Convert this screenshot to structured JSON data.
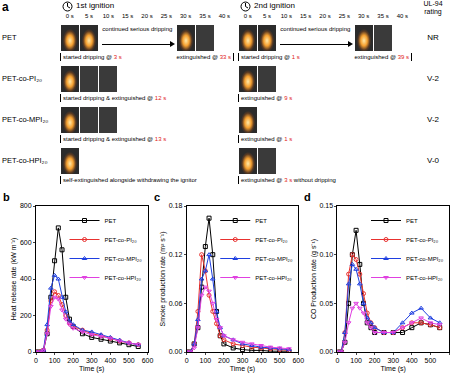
{
  "panel_a": {
    "letter": "a",
    "first_ignition": "1st ignition",
    "second_ignition": "2nd ignition",
    "rating_head": "UL-94 rating",
    "times": [
      "0 s",
      "5 s",
      "10 s",
      "15 s",
      "20 s",
      "25 s",
      "30 s",
      "35 s",
      "40 s"
    ],
    "rows": [
      {
        "name": "PET",
        "first": [
          "started dripping @ 3 s",
          "continued serious dripping",
          "extinguished @ 33 s"
        ],
        "second": [
          "started dripping @ 1 s",
          "continued serious dripping",
          "extinguished @ 39 s"
        ],
        "rating": "NR"
      },
      {
        "name": "PET-co-PI₂₀",
        "first": [
          "started dripping & extinguished @ 12 s"
        ],
        "second": [
          "extinguished @ 9 s"
        ],
        "rating": "V-2"
      },
      {
        "name": "PET-co-MPI₂₀",
        "first": [
          "started dripping & extinguished @ 13 s"
        ],
        "second": [
          "extinguished @ 1 s"
        ],
        "rating": "V-2"
      },
      {
        "name": "PET-co-HPI₂₀",
        "first": [
          "self-extinguished alongside withdrawing the ignitor"
        ],
        "second": [
          "extinguished @ 3 s without dripping"
        ],
        "rating": "V-0"
      }
    ]
  },
  "chart_data": [
    {
      "type": "line",
      "panel": "b",
      "x_label": "Time (s)",
      "y_label": "Heat release rate (kW m⁻²)",
      "xlim": [
        0,
        600
      ],
      "xticks": [
        0,
        100,
        200,
        300,
        400,
        500,
        600
      ],
      "ylim": [
        0,
        800
      ],
      "yticks": [
        0,
        200,
        400,
        600,
        800
      ],
      "legend": "upper right",
      "x": [
        0,
        20,
        40,
        60,
        80,
        100,
        120,
        140,
        160,
        180,
        200,
        250,
        300,
        350,
        400,
        450,
        500,
        550
      ],
      "series": [
        {
          "name": "PET",
          "color": "#000000",
          "marker": "square",
          "values": [
            0,
            0,
            5,
            100,
            300,
            500,
            680,
            560,
            300,
            180,
            140,
            100,
            80,
            70,
            60,
            50,
            40,
            30
          ]
        },
        {
          "name": "PET-co-PI₂₀",
          "color": "#e8312f",
          "marker": "circle",
          "values": [
            0,
            0,
            10,
            120,
            280,
            330,
            310,
            260,
            200,
            160,
            140,
            120,
            100,
            90,
            75,
            60,
            50,
            40
          ]
        },
        {
          "name": "PET-co-MPI₂₀",
          "color": "#1f3fe0",
          "marker": "triangle-up",
          "values": [
            0,
            0,
            10,
            150,
            350,
            420,
            400,
            300,
            220,
            170,
            150,
            120,
            110,
            95,
            80,
            65,
            50,
            40
          ]
        },
        {
          "name": "PET-co-HPI₂₀",
          "color": "#e040e0",
          "marker": "triangle-down",
          "values": [
            0,
            0,
            10,
            100,
            250,
            300,
            290,
            230,
            180,
            150,
            130,
            110,
            95,
            85,
            75,
            60,
            50,
            40
          ]
        }
      ]
    },
    {
      "type": "line",
      "panel": "c",
      "x_label": "Time (s)",
      "y_label": "Smoke production rate (m² s⁻¹)",
      "xlim": [
        0,
        600
      ],
      "xticks": [
        0,
        100,
        200,
        300,
        400,
        500,
        600
      ],
      "ylim": [
        0,
        0.18
      ],
      "yticks": [
        {
          "value": 0,
          "label": "0.00"
        },
        {
          "value": 0.06,
          "label": "0.06"
        },
        {
          "value": 0.12,
          "label": "0.12"
        },
        {
          "value": 0.18,
          "label": "0.18"
        }
      ],
      "legend": "upper right",
      "x": [
        0,
        20,
        40,
        60,
        80,
        100,
        120,
        140,
        160,
        180,
        200,
        250,
        300,
        350,
        400,
        450,
        500,
        550
      ],
      "series": [
        {
          "name": "PET",
          "color": "#000000",
          "marker": "square",
          "values": [
            0,
            0,
            0.01,
            0.03,
            0.08,
            0.13,
            0.165,
            0.12,
            0.05,
            0.02,
            0.01,
            0.005,
            0.003,
            0.002,
            0.002,
            0.001,
            0.001,
            0.001
          ]
        },
        {
          "name": "PET-co-PI₂₀",
          "color": "#e8312f",
          "marker": "circle",
          "values": [
            0,
            0,
            0.01,
            0.05,
            0.12,
            0.1,
            0.07,
            0.05,
            0.035,
            0.02,
            0.015,
            0.01,
            0.008,
            0.006,
            0.005,
            0.004,
            0.003,
            0.002
          ]
        },
        {
          "name": "PET-co-MPI₂₀",
          "color": "#1f3fe0",
          "marker": "triangle-up",
          "values": [
            0,
            0,
            0.01,
            0.04,
            0.09,
            0.1,
            0.12,
            0.09,
            0.05,
            0.03,
            0.02,
            0.015,
            0.01,
            0.008,
            0.006,
            0.005,
            0.004,
            0.003
          ]
        },
        {
          "name": "PET-co-HPI₂₀",
          "color": "#e040e0",
          "marker": "triangle-down",
          "values": [
            0,
            0,
            0.005,
            0.03,
            0.07,
            0.08,
            0.075,
            0.06,
            0.04,
            0.03,
            0.02,
            0.015,
            0.012,
            0.01,
            0.008,
            0.006,
            0.005,
            0.004
          ]
        }
      ]
    },
    {
      "type": "line",
      "panel": "d",
      "x_label": "Time (s)",
      "y_label": "CO Production rate (g s⁻¹)",
      "xlim": [
        0,
        600
      ],
      "xticks": [
        0,
        100,
        200,
        300,
        400,
        500,
        600
      ],
      "ylim": [
        0,
        0.15
      ],
      "yticks": [
        {
          "value": 0,
          "label": "0.00"
        },
        {
          "value": 0.05,
          "label": "0.05"
        },
        {
          "value": 0.1,
          "label": "0.10"
        },
        {
          "value": 0.15,
          "label": "0.15"
        }
      ],
      "legend": "upper right",
      "x": [
        0,
        20,
        40,
        60,
        80,
        100,
        120,
        140,
        160,
        180,
        200,
        250,
        300,
        350,
        400,
        450,
        500,
        550
      ],
      "series": [
        {
          "name": "PET",
          "color": "#000000",
          "marker": "square",
          "values": [
            0,
            0,
            0.01,
            0.05,
            0.1,
            0.125,
            0.09,
            0.05,
            0.03,
            0.025,
            0.02,
            0.02,
            0.02,
            0.02,
            0.025,
            0.03,
            0.028,
            0.025
          ]
        },
        {
          "name": "PET-co-PI₂₀",
          "color": "#e8312f",
          "marker": "circle",
          "values": [
            0,
            0,
            0.02,
            0.08,
            0.1,
            0.095,
            0.08,
            0.06,
            0.04,
            0.03,
            0.025,
            0.02,
            0.02,
            0.025,
            0.03,
            0.03,
            0.028,
            0.025
          ]
        },
        {
          "name": "PET-co-MPI₂₀",
          "color": "#1f3fe0",
          "marker": "triangle-up",
          "values": [
            0,
            0,
            0.02,
            0.07,
            0.09,
            0.085,
            0.07,
            0.05,
            0.035,
            0.03,
            0.025,
            0.02,
            0.02,
            0.03,
            0.04,
            0.045,
            0.035,
            0.03
          ]
        },
        {
          "name": "PET-co-HPI₂₀",
          "color": "#e040e0",
          "marker": "triangle-down",
          "values": [
            0,
            0,
            0.01,
            0.03,
            0.045,
            0.05,
            0.045,
            0.04,
            0.03,
            0.025,
            0.02,
            0.02,
            0.02,
            0.025,
            0.03,
            0.035,
            0.03,
            0.028
          ]
        }
      ]
    }
  ]
}
